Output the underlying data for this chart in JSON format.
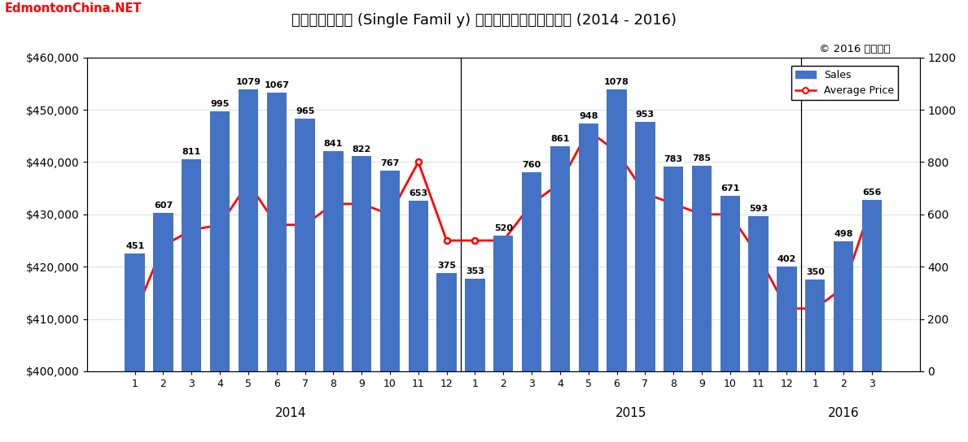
{
  "title": "埃德蒙顿独立房 (Single Famil y) 月平均价格和销售量走势 (2014 - 2016)",
  "copyright": "© 2016 老杨团队",
  "watermark": "EdmontonChina.NET",
  "years": [
    "2014",
    "2015",
    "2016"
  ],
  "year_centers": [
    5.5,
    17.5,
    25.0
  ],
  "year_separators": [
    11.5,
    23.5
  ],
  "labels": [
    1,
    2,
    3,
    4,
    5,
    6,
    7,
    8,
    9,
    10,
    11,
    12,
    1,
    2,
    3,
    4,
    5,
    6,
    7,
    8,
    9,
    10,
    11,
    12,
    1,
    2,
    3
  ],
  "sales": [
    451,
    607,
    811,
    995,
    1079,
    1067,
    965,
    841,
    822,
    767,
    653,
    375,
    353,
    520,
    760,
    861,
    948,
    1078,
    953,
    783,
    785,
    671,
    593,
    402,
    350,
    498,
    656
  ],
  "avg_price": [
    411000,
    424000,
    427000,
    428000,
    436000,
    428000,
    428000,
    432000,
    432000,
    430000,
    440000,
    425000,
    425000,
    425000,
    432000,
    436000,
    446000,
    442000,
    434000,
    432000,
    430000,
    430000,
    422000,
    412000,
    412000,
    416000,
    432000
  ],
  "bar_color": "#4472C4",
  "line_color": "#FF0000",
  "ylim_price": [
    400000,
    460000
  ],
  "ylim_sales": [
    0,
    1200
  ],
  "yticks_price": [
    400000,
    410000,
    420000,
    430000,
    440000,
    450000,
    460000
  ],
  "yticks_sales": [
    0,
    200,
    400,
    600,
    800,
    1000,
    1200
  ],
  "background_color": "#FFFFFF",
  "title_fontsize": 13,
  "bar_label_fontsize": 8,
  "watermark_color": "#FF0000",
  "grid_color": "#D0D0D0",
  "separator_color": "#000000"
}
